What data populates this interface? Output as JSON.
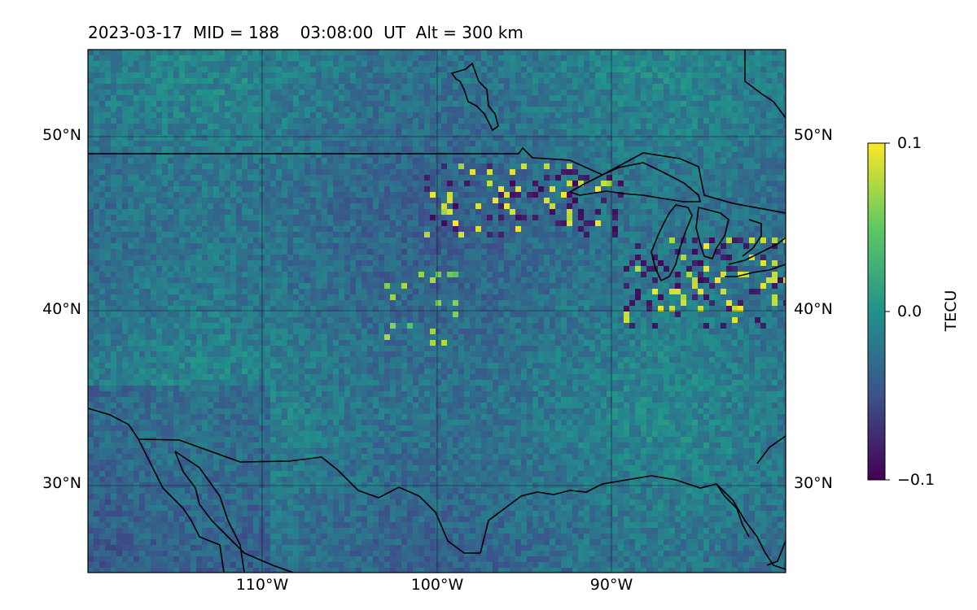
{
  "figure": {
    "title": "2023-03-17  MID = 188    03:08:00  UT  Alt = 300 km"
  },
  "map": {
    "projection": "plate-carree",
    "extent": {
      "lon": [
        -120,
        -80
      ],
      "lat": [
        25,
        55
      ]
    },
    "gridlines": {
      "lat": [
        30,
        40,
        50
      ],
      "lon": [
        -110,
        -100,
        -90
      ]
    },
    "lat_labels": [
      "50°N",
      "40°N",
      "30°N"
    ],
    "lon_labels": [
      "110°W",
      "100°W",
      "90°W"
    ],
    "features": [
      "coastlines",
      "country-borders",
      "great-lakes"
    ],
    "field": "TEC perturbation (mostly near 0, strongest fluctuations around the Great Lakes / northern Plains)"
  },
  "colorbar": {
    "label": "TECU",
    "cmap": "viridis",
    "vmin": -0.1,
    "vmax": 0.1,
    "ticks": [
      "0.1",
      "0.0",
      "−0.1"
    ],
    "colors": [
      "#440154",
      "#3b528b",
      "#21918c",
      "#5ec962",
      "#fde725"
    ]
  }
}
